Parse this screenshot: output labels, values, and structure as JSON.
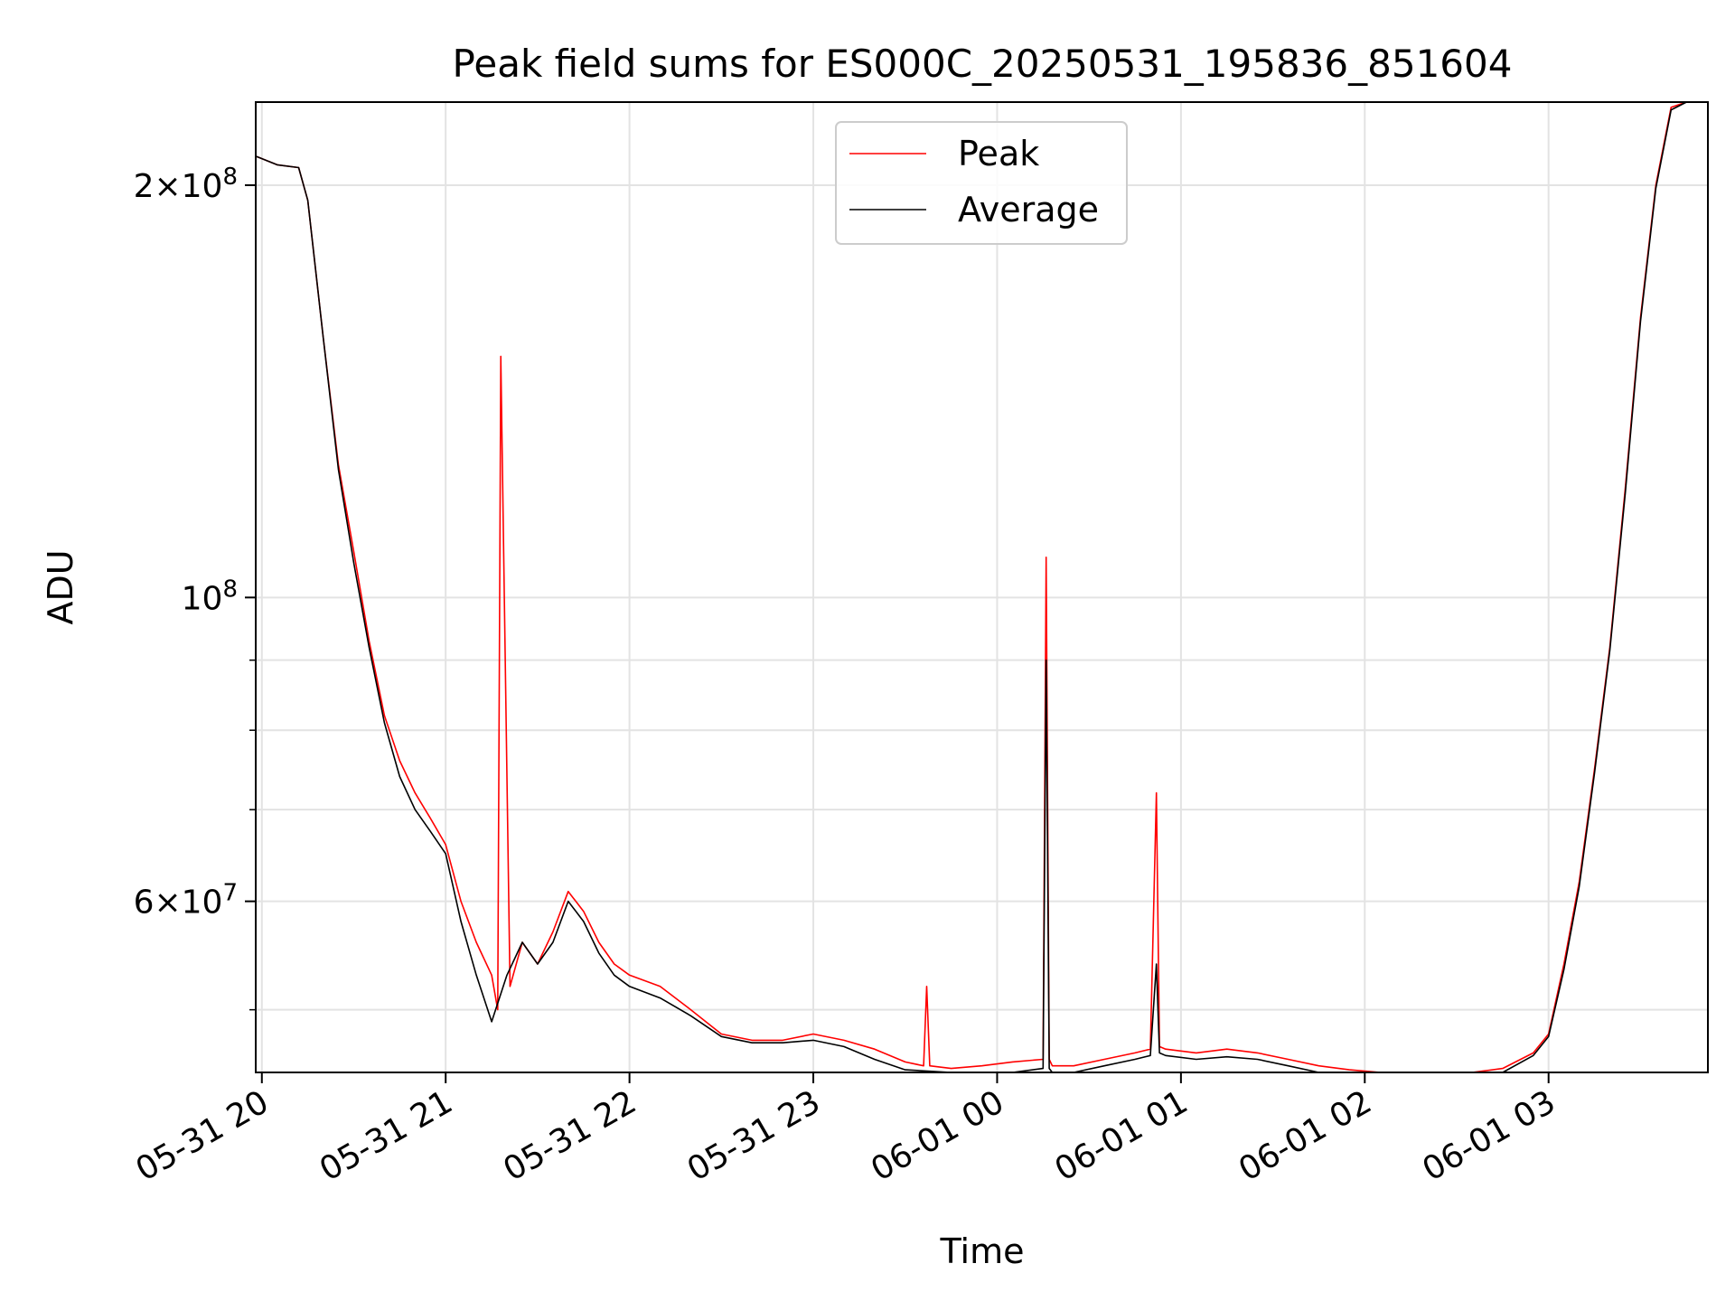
{
  "chart_data": {
    "type": "line",
    "title": "Peak field sums for ES000C_20250531_195836_851604",
    "xlabel": "Time",
    "ylabel": "ADU",
    "yscale": "log",
    "xlim": [
      "2025-05-31 19:58",
      "2025-06-01 03:52"
    ],
    "ylim": [
      45000000,
      230000000
    ],
    "x_ticks": [
      {
        "label": "05-31 20",
        "value": "2025-05-31 20:00"
      },
      {
        "label": "05-31 21",
        "value": "2025-05-31 21:00"
      },
      {
        "label": "05-31 22",
        "value": "2025-05-31 22:00"
      },
      {
        "label": "05-31 23",
        "value": "2025-05-31 23:00"
      },
      {
        "label": "06-01 00",
        "value": "2025-06-01 00:00"
      },
      {
        "label": "06-01 01",
        "value": "2025-06-01 01:00"
      },
      {
        "label": "06-01 02",
        "value": "2025-06-01 02:00"
      },
      {
        "label": "06-01 03",
        "value": "2025-06-01 03:00"
      }
    ],
    "y_major_ticks": [
      {
        "base": "2",
        "exp": "8",
        "value": 200000000
      },
      {
        "base": "10",
        "exp": "8",
        "value": 100000000
      },
      {
        "base": "6",
        "exp": "7",
        "value": 60000000
      }
    ],
    "y_minor_ticks": [
      50000000,
      70000000,
      80000000,
      90000000
    ],
    "grid": true,
    "legend_position": "top-center",
    "series": [
      {
        "name": "Peak",
        "color": "#ff0000",
        "x": [
          "2025-05-31 19:58",
          "2025-05-31 20:05",
          "2025-05-31 20:12",
          "2025-05-31 20:15",
          "2025-05-31 20:20",
          "2025-05-31 20:25",
          "2025-05-31 20:30",
          "2025-05-31 20:35",
          "2025-05-31 20:40",
          "2025-05-31 20:45",
          "2025-05-31 20:50",
          "2025-05-31 20:55",
          "2025-05-31 21:00",
          "2025-05-31 21:05",
          "2025-05-31 21:10",
          "2025-05-31 21:15",
          "2025-05-31 21:17",
          "2025-05-31 21:18",
          "2025-05-31 21:21",
          "2025-05-31 21:25",
          "2025-05-31 21:30",
          "2025-05-31 21:35",
          "2025-05-31 21:40",
          "2025-05-31 21:45",
          "2025-05-31 21:50",
          "2025-05-31 21:55",
          "2025-05-31 22:00",
          "2025-05-31 22:10",
          "2025-05-31 22:20",
          "2025-05-31 22:30",
          "2025-05-31 22:40",
          "2025-05-31 22:50",
          "2025-05-31 23:00",
          "2025-05-31 23:10",
          "2025-05-31 23:20",
          "2025-05-31 23:30",
          "2025-05-31 23:36",
          "2025-05-31 23:37",
          "2025-05-31 23:38",
          "2025-05-31 23:45",
          "2025-05-31 23:55",
          "2025-06-01 00:05",
          "2025-06-01 00:15",
          "2025-06-01 00:16",
          "2025-06-01 00:17",
          "2025-06-01 00:18",
          "2025-06-01 00:25",
          "2025-06-01 00:35",
          "2025-06-01 00:45",
          "2025-06-01 00:50",
          "2025-06-01 00:52",
          "2025-06-01 00:53",
          "2025-06-01 00:55",
          "2025-06-01 01:05",
          "2025-06-01 01:15",
          "2025-06-01 01:25",
          "2025-06-01 01:35",
          "2025-06-01 01:45",
          "2025-06-01 01:55",
          "2025-06-01 02:05",
          "2025-06-01 02:15",
          "2025-06-01 02:25",
          "2025-06-01 02:35",
          "2025-06-01 02:45",
          "2025-06-01 02:55",
          "2025-06-01 03:00",
          "2025-06-01 03:05",
          "2025-06-01 03:10",
          "2025-06-01 03:15",
          "2025-06-01 03:20",
          "2025-06-01 03:25",
          "2025-06-01 03:30",
          "2025-06-01 03:35",
          "2025-06-01 03:40",
          "2025-06-01 03:45",
          "2025-06-01 03:52"
        ],
        "y": [
          210000000,
          207000000,
          206000000,
          195000000,
          155000000,
          125000000,
          108000000,
          93000000,
          82000000,
          76000000,
          72000000,
          69000000,
          66000000,
          60000000,
          56000000,
          53000000,
          50000000,
          150000000,
          52000000,
          56000000,
          54000000,
          57000000,
          61000000,
          59000000,
          56000000,
          54000000,
          53000000,
          52000000,
          50000000,
          48000000,
          47500000,
          47500000,
          48000000,
          47500000,
          46800000,
          45800000,
          45500000,
          52000000,
          45500000,
          45300000,
          45500000,
          45800000,
          46000000,
          107000000,
          46000000,
          45500000,
          45500000,
          46000000,
          46500000,
          46800000,
          72000000,
          47000000,
          46800000,
          46500000,
          46800000,
          46500000,
          46000000,
          45500000,
          45200000,
          45000000,
          44800000,
          44800000,
          45000000,
          45300000,
          46500000,
          48000000,
          54000000,
          62000000,
          75000000,
          92000000,
          120000000,
          160000000,
          200000000,
          228000000,
          230000000,
          230000000
        ]
      },
      {
        "name": "Average",
        "color": "#000000",
        "x": [
          "2025-05-31 19:58",
          "2025-05-31 20:05",
          "2025-05-31 20:12",
          "2025-05-31 20:15",
          "2025-05-31 20:20",
          "2025-05-31 20:25",
          "2025-05-31 20:30",
          "2025-05-31 20:35",
          "2025-05-31 20:40",
          "2025-05-31 20:45",
          "2025-05-31 20:50",
          "2025-05-31 20:55",
          "2025-05-31 21:00",
          "2025-05-31 21:05",
          "2025-05-31 21:10",
          "2025-05-31 21:15",
          "2025-05-31 21:20",
          "2025-05-31 21:25",
          "2025-05-31 21:30",
          "2025-05-31 21:35",
          "2025-05-31 21:40",
          "2025-05-31 21:45",
          "2025-05-31 21:50",
          "2025-05-31 21:55",
          "2025-05-31 22:00",
          "2025-05-31 22:10",
          "2025-05-31 22:20",
          "2025-05-31 22:30",
          "2025-05-31 22:40",
          "2025-05-31 22:50",
          "2025-05-31 23:00",
          "2025-05-31 23:10",
          "2025-05-31 23:20",
          "2025-05-31 23:30",
          "2025-05-31 23:45",
          "2025-05-31 23:55",
          "2025-06-01 00:05",
          "2025-06-01 00:15",
          "2025-06-01 00:16",
          "2025-06-01 00:17",
          "2025-06-01 00:18",
          "2025-06-01 00:25",
          "2025-06-01 00:35",
          "2025-06-01 00:45",
          "2025-06-01 00:50",
          "2025-06-01 00:52",
          "2025-06-01 00:53",
          "2025-06-01 00:55",
          "2025-06-01 01:05",
          "2025-06-01 01:15",
          "2025-06-01 01:25",
          "2025-06-01 01:35",
          "2025-06-01 01:45",
          "2025-06-01 01:55",
          "2025-06-01 02:05",
          "2025-06-01 02:15",
          "2025-06-01 02:25",
          "2025-06-01 02:35",
          "2025-06-01 02:45",
          "2025-06-01 02:55",
          "2025-06-01 03:00",
          "2025-06-01 03:05",
          "2025-06-01 03:10",
          "2025-06-01 03:15",
          "2025-06-01 03:20",
          "2025-06-01 03:25",
          "2025-06-01 03:30",
          "2025-06-01 03:35",
          "2025-06-01 03:40",
          "2025-06-01 03:45",
          "2025-06-01 03:52"
        ],
        "y": [
          210000000,
          207000000,
          206000000,
          195000000,
          155000000,
          124000000,
          106000000,
          92000000,
          81000000,
          74000000,
          70000000,
          67500000,
          65000000,
          58000000,
          53000000,
          49000000,
          53000000,
          56000000,
          54000000,
          56000000,
          60000000,
          58000000,
          55000000,
          53000000,
          52000000,
          51000000,
          49500000,
          47800000,
          47300000,
          47300000,
          47500000,
          47000000,
          46000000,
          45200000,
          44800000,
          45000000,
          45000000,
          45300000,
          90000000,
          45300000,
          45000000,
          45000000,
          45500000,
          46000000,
          46300000,
          54000000,
          46500000,
          46300000,
          46000000,
          46200000,
          46000000,
          45500000,
          45000000,
          44800000,
          44600000,
          44400000,
          44400000,
          44600000,
          45000000,
          46300000,
          47800000,
          53500000,
          61500000,
          74500000,
          91500000,
          119000000,
          159000000,
          199000000,
          227000000,
          230000000,
          230000000
        ]
      }
    ]
  }
}
